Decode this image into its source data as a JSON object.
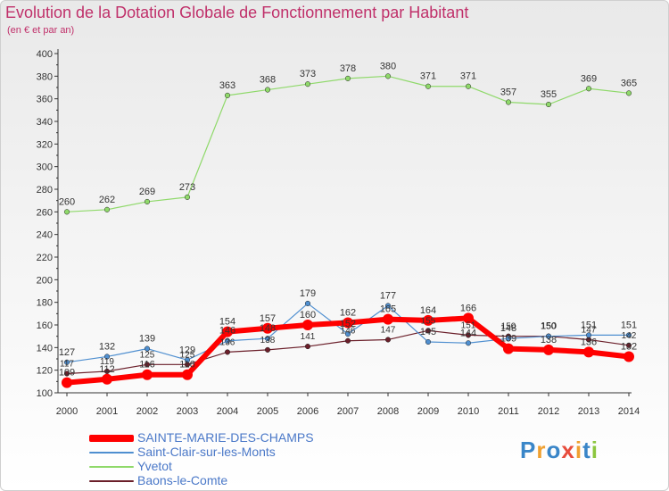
{
  "title": "Evolution de la Dotation Globale de Fonctionnement par Habitant",
  "subtitle": "(en € et par an)",
  "logo": "Proxiti",
  "chart_data": {
    "type": "line",
    "title": "Evolution de la Dotation Globale de Fonctionnement par Habitant",
    "subtitle": "(en € et par an)",
    "xlabel": "",
    "ylabel": "",
    "ylim": [
      100,
      400
    ],
    "ytick_step": 20,
    "grid": false,
    "legend_position": "bottom-left",
    "categories": [
      "2000",
      "2001",
      "2002",
      "2003",
      "2004",
      "2005",
      "2006",
      "2007",
      "2008",
      "2009",
      "2010",
      "2011",
      "2012",
      "2013",
      "2014"
    ],
    "series": [
      {
        "name": "Yvetot",
        "color": "#8fd96a",
        "values": [
          260,
          262,
          269,
          273,
          363,
          368,
          373,
          378,
          380,
          371,
          371,
          357,
          355,
          369,
          365
        ]
      },
      {
        "name": "Baons-le-Comte",
        "color": "#6b1f2a",
        "values": [
          117,
          119,
          125,
          125,
          136,
          138,
          141,
          146,
          147,
          155,
          151,
          150,
          150,
          147,
          142
        ]
      },
      {
        "name": "Saint-Clair-sur-les-Monts",
        "color": "#4f8fd0",
        "values": [
          127,
          132,
          139,
          129,
          146,
          148,
          179,
          152,
          177,
          145,
          144,
          148,
          150,
          151,
          151
        ]
      },
      {
        "name": "SAINTE-MARIE-DES-CHAMPS",
        "color": "#ff0000",
        "values": [
          109,
          112,
          116,
          116,
          154,
          157,
          160,
          162,
          165,
          164,
          166,
          139,
          138,
          136,
          132
        ]
      }
    ],
    "value_labels": {
      "Yvetot": [
        "260",
        "262",
        "269",
        "273",
        "363",
        "368",
        "373",
        "378",
        "380",
        "371",
        "371",
        "357",
        "355",
        "369",
        "365"
      ],
      "Baons-le-Comte": [
        "117",
        "119",
        "125",
        "125",
        "136",
        "138",
        "141",
        "146",
        "147",
        "155",
        "151",
        "150",
        "150",
        "147",
        "142"
      ],
      "Saint-Clair-sur-les-Monts": [
        "127",
        "132",
        "139",
        "129",
        "146",
        "148",
        "179",
        "152",
        "177",
        "145",
        "144",
        "148",
        "150",
        "151",
        "151"
      ],
      "SAINTE-MARIE-DES-CHAMPS": [
        "109",
        "112",
        "116",
        "116",
        "154",
        "157",
        "160",
        "162",
        "165",
        "164",
        "166",
        "139",
        "138",
        "136",
        "132"
      ]
    },
    "legend": [
      "SAINTE-MARIE-DES-CHAMPS",
      "Saint-Clair-sur-les-Monts",
      "Yvetot",
      "Baons-le-Comte"
    ]
  }
}
